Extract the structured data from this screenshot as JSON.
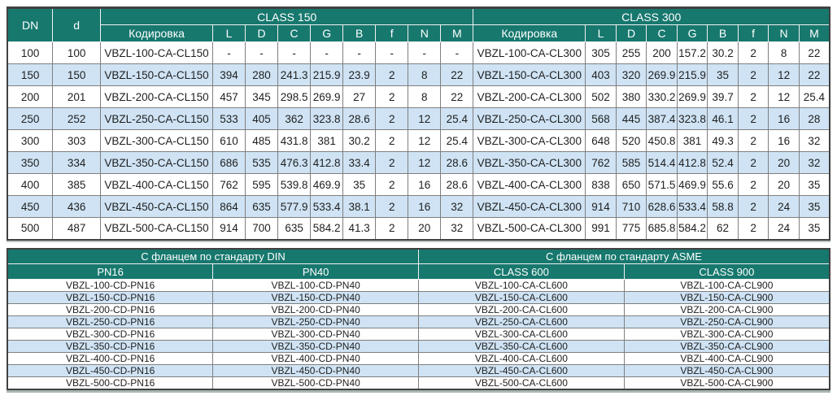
{
  "colors": {
    "header_teal": "#17786e",
    "row_alt_blue": "#cfe3f4",
    "row_white": "#ffffff",
    "grid_line": "#7f7f7f",
    "outer_border": "#404040",
    "header_text": "#ffffff",
    "body_text": "#1f1f1f"
  },
  "table1": {
    "header": {
      "dn": "DN",
      "d": "d",
      "group1": "CLASS 150",
      "group2": "CLASS 300",
      "coding": "Кодировка",
      "dim_cols": [
        "L",
        "D",
        "C",
        "G",
        "B",
        "f",
        "N",
        "M"
      ]
    },
    "rows": [
      {
        "dn": "100",
        "d": "100",
        "code150": "VBZL-100-CA-CL150",
        "vals150": [
          "-",
          "-",
          "-",
          "-",
          "-",
          "-",
          "-",
          "-"
        ],
        "code300": "VBZL-100-CA-CL300",
        "vals300": [
          "305",
          "255",
          "200",
          "157.2",
          "30.2",
          "2",
          "8",
          "22"
        ]
      },
      {
        "dn": "150",
        "d": "150",
        "code150": "VBZL-150-CA-CL150",
        "vals150": [
          "394",
          "280",
          "241.3",
          "215.9",
          "23.9",
          "2",
          "8",
          "22"
        ],
        "code300": "VBZL-150-CA-CL300",
        "vals300": [
          "403",
          "320",
          "269.9",
          "215.9",
          "35",
          "2",
          "12",
          "22"
        ]
      },
      {
        "dn": "200",
        "d": "201",
        "code150": "VBZL-200-CA-CL150",
        "vals150": [
          "457",
          "345",
          "298.5",
          "269.9",
          "27",
          "2",
          "8",
          "22"
        ],
        "code300": "VBZL-200-CA-CL300",
        "vals300": [
          "502",
          "380",
          "330.2",
          "269.9",
          "39.7",
          "2",
          "12",
          "25.4"
        ]
      },
      {
        "dn": "250",
        "d": "252",
        "code150": "VBZL-250-CA-CL150",
        "vals150": [
          "533",
          "405",
          "362",
          "323.8",
          "28.6",
          "2",
          "12",
          "25.4"
        ],
        "code300": "VBZL-250-CA-CL300",
        "vals300": [
          "568",
          "445",
          "387.4",
          "323.8",
          "46.1",
          "2",
          "16",
          "28"
        ]
      },
      {
        "dn": "300",
        "d": "303",
        "code150": "VBZL-300-CA-CL150",
        "vals150": [
          "610",
          "485",
          "431.8",
          "381",
          "30.2",
          "2",
          "12",
          "25.4"
        ],
        "code300": "VBZL-300-CA-CL300",
        "vals300": [
          "648",
          "520",
          "450.8",
          "381",
          "49.3",
          "2",
          "16",
          "32"
        ]
      },
      {
        "dn": "350",
        "d": "334",
        "code150": "VBZL-350-CA-CL150",
        "vals150": [
          "686",
          "535",
          "476.3",
          "412.8",
          "33.4",
          "2",
          "12",
          "28.6"
        ],
        "code300": "VBZL-350-CA-CL300",
        "vals300": [
          "762",
          "585",
          "514.4",
          "412.8",
          "52.4",
          "2",
          "20",
          "32"
        ]
      },
      {
        "dn": "400",
        "d": "385",
        "code150": "VBZL-400-CA-CL150",
        "vals150": [
          "762",
          "595",
          "539.8",
          "469.9",
          "35",
          "2",
          "16",
          "28.6"
        ],
        "code300": "VBZL-400-CA-CL300",
        "vals300": [
          "838",
          "650",
          "571.5",
          "469.9",
          "55.6",
          "2",
          "20",
          "35"
        ]
      },
      {
        "dn": "450",
        "d": "436",
        "code150": "VBZL-450-CA-CL150",
        "vals150": [
          "864",
          "635",
          "577.9",
          "533.4",
          "38.1",
          "2",
          "16",
          "32"
        ],
        "code300": "VBZL-450-CA-CL300",
        "vals300": [
          "914",
          "710",
          "628.6",
          "533.4",
          "58.8",
          "2",
          "24",
          "35"
        ]
      },
      {
        "dn": "500",
        "d": "487",
        "code150": "VBZL-500-CA-CL150",
        "vals150": [
          "914",
          "700",
          "635",
          "584.2",
          "41.3",
          "2",
          "20",
          "32"
        ],
        "code300": "VBZL-500-CA-CL300",
        "vals300": [
          "991",
          "775",
          "685.8",
          "584.2",
          "62",
          "2",
          "24",
          "35"
        ]
      }
    ]
  },
  "table2": {
    "header": {
      "din": "С фланцем по стандарту DIN",
      "asme": "С фланцем по стандарту ASME",
      "cols": [
        "PN16",
        "PN40",
        "CLASS 600",
        "CLASS 900"
      ]
    },
    "rows": [
      [
        "VBZL-100-CD-PN16",
        "VBZL-100-CD-PN40",
        "VBZL-100-CA-CL600",
        "VBZL-100-CA-CL900"
      ],
      [
        "VBZL-150-CD-PN16",
        "VBZL-150-CD-PN40",
        "VBZL-150-CA-CL600",
        "VBZL-150-CA-CL900"
      ],
      [
        "VBZL-200-CD-PN16",
        "VBZL-200-CD-PN40",
        "VBZL-200-CA-CL600",
        "VBZL-200-CA-CL900"
      ],
      [
        "VBZL-250-CD-PN16",
        "VBZL-250-CD-PN40",
        "VBZL-250-CA-CL600",
        "VBZL-250-CA-CL900"
      ],
      [
        "VBZL-300-CD-PN16",
        "VBZL-300-CD-PN40",
        "VBZL-300-CA-CL600",
        "VBZL-300-CA-CL900"
      ],
      [
        "VBZL-350-CD-PN16",
        "VBZL-350-CD-PN40",
        "VBZL-350-CA-CL600",
        "VBZL-350-CA-CL900"
      ],
      [
        "VBZL-400-CD-PN16",
        "VBZL-400-CD-PN40",
        "VBZL-400-CA-CL600",
        "VBZL-400-CA-CL900"
      ],
      [
        "VBZL-450-CD-PN16",
        "VBZL-450-CD-PN40",
        "VBZL-450-CA-CL600",
        "VBZL-450-CA-CL900"
      ],
      [
        "VBZL-500-CD-PN16",
        "VBZL-500-CD-PN40",
        "VBZL-500-CA-CL600",
        "VBZL-500-CA-CL900"
      ]
    ]
  }
}
